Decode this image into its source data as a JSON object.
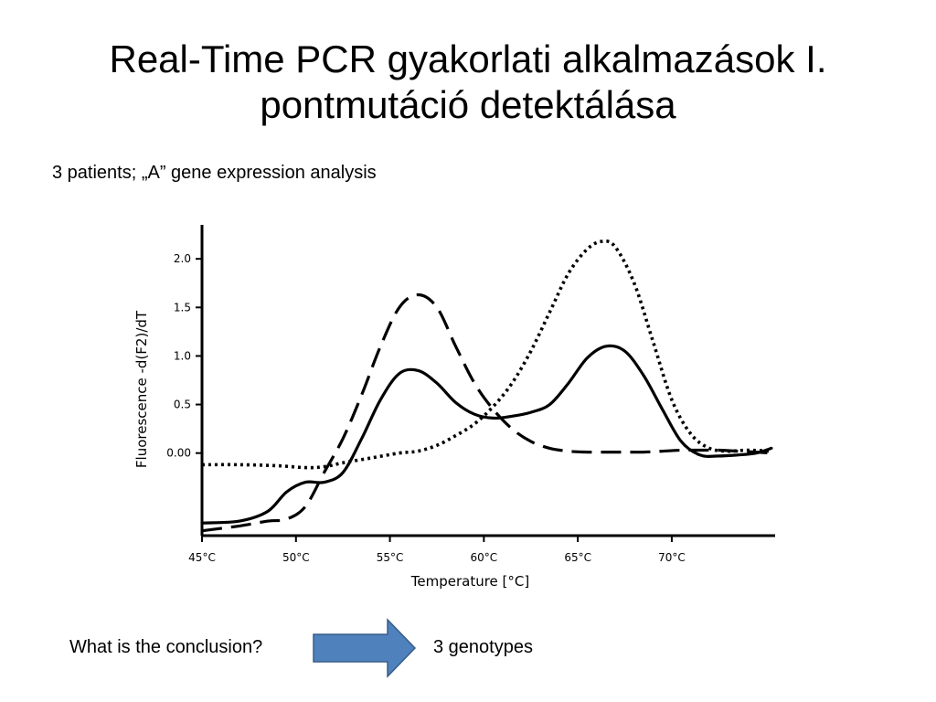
{
  "slide": {
    "title_line1": "Real-Time PCR gyakorlati alkalmazások I.",
    "title_line2": "pontmutáció detektálása",
    "subtitle": "3 patients;  „A” gene expression analysis",
    "question": "What is the conclusion?",
    "answer": "3 genotypes",
    "arrow_color": "#4f81bd"
  },
  "chart_data": {
    "type": "line",
    "title": "",
    "xlabel": "Temperature [°C]",
    "ylabel": "Fluorescence -d(F2)/dT",
    "xlim": [
      45,
      75.5
    ],
    "ylim": [
      -0.85,
      2.35
    ],
    "x_ticks": [
      45,
      50,
      55,
      60,
      65,
      70
    ],
    "x_tick_labels": [
      "45°C",
      "50°C",
      "55°C",
      "60°C",
      "65°C",
      "70°C"
    ],
    "y_ticks": [
      0.0,
      0.5,
      1.0,
      1.5,
      2.0
    ],
    "y_tick_labels": [
      "0.00",
      "0.5",
      "1.0",
      "1.5",
      "2.0"
    ],
    "grid": false,
    "legend": "none",
    "series": [
      {
        "style": "solid",
        "x": [
          45,
          47,
          48.5,
          49.5,
          50.5,
          51.5,
          52.5,
          53.5,
          54.5,
          55.5,
          56.5,
          57.5,
          58.5,
          59.5,
          60.5,
          61.5,
          62.5,
          63.5,
          64.5,
          65.5,
          66.5,
          67.5,
          68.5,
          69.5,
          70.5,
          71.5,
          72.5,
          73.5,
          74.5,
          75.3
        ],
        "y": [
          -0.72,
          -0.7,
          -0.6,
          -0.4,
          -0.3,
          -0.3,
          -0.2,
          0.15,
          0.55,
          0.82,
          0.85,
          0.72,
          0.52,
          0.4,
          0.36,
          0.38,
          0.42,
          0.5,
          0.72,
          0.98,
          1.1,
          1.05,
          0.8,
          0.45,
          0.12,
          -0.02,
          -0.03,
          -0.02,
          0.0,
          0.05
        ]
      },
      {
        "style": "dashed",
        "x": [
          45,
          47,
          48.5,
          49.5,
          50.5,
          51.5,
          52.5,
          53.5,
          54.5,
          55.5,
          56.5,
          57.5,
          58.5,
          59.5,
          60.5,
          61.5,
          62.5,
          63.5,
          64.5,
          65.5,
          66.5,
          67.5,
          68.5,
          69.5,
          70.5,
          71.5,
          72.5,
          73.5,
          74.5,
          75.3
        ],
        "y": [
          -0.8,
          -0.75,
          -0.7,
          -0.68,
          -0.55,
          -0.2,
          0.15,
          0.6,
          1.1,
          1.5,
          1.63,
          1.5,
          1.1,
          0.72,
          0.45,
          0.25,
          0.12,
          0.05,
          0.02,
          0.01,
          0.01,
          0.01,
          0.01,
          0.02,
          0.03,
          0.03,
          0.03,
          0.02,
          0.01,
          0.0
        ]
      },
      {
        "style": "dotted",
        "x": [
          45,
          47,
          49,
          50.5,
          51.5,
          52.5,
          54,
          55.5,
          56.5,
          57.5,
          58.5,
          59.5,
          60.5,
          61.5,
          62.5,
          63.5,
          64.5,
          65.5,
          66.3,
          67,
          68,
          69,
          70,
          71,
          72,
          73,
          74,
          75.3
        ],
        "y": [
          -0.12,
          -0.12,
          -0.13,
          -0.15,
          -0.14,
          -0.1,
          -0.05,
          0.0,
          0.02,
          0.08,
          0.18,
          0.3,
          0.48,
          0.72,
          1.05,
          1.45,
          1.85,
          2.1,
          2.18,
          2.12,
          1.75,
          1.15,
          0.55,
          0.2,
          0.05,
          0.02,
          0.03,
          0.02
        ]
      }
    ]
  }
}
